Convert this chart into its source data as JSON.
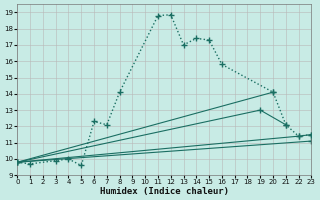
{
  "xlabel": "Humidex (Indice chaleur)",
  "bg_color": "#c8ebe5",
  "line_color": "#1a6e62",
  "xlim": [
    0,
    23
  ],
  "ylim": [
    9,
    19.5
  ],
  "yticks": [
    9,
    10,
    11,
    12,
    13,
    14,
    15,
    16,
    17,
    18,
    19
  ],
  "xticks": [
    0,
    1,
    2,
    3,
    4,
    5,
    6,
    7,
    8,
    9,
    10,
    11,
    12,
    13,
    14,
    15,
    16,
    17,
    18,
    19,
    20,
    21,
    22,
    23
  ],
  "zigzag_x": [
    0,
    1,
    3,
    4,
    5,
    6,
    7,
    8,
    11,
    12,
    13,
    14,
    15,
    16,
    20,
    21,
    22,
    23
  ],
  "zigzag_y": [
    9.8,
    9.7,
    9.9,
    10.0,
    9.6,
    12.3,
    12.1,
    14.1,
    18.8,
    18.85,
    17.0,
    17.4,
    17.3,
    15.8,
    14.1,
    12.1,
    11.4,
    11.5
  ],
  "straight_lines": [
    {
      "x": [
        0,
        20
      ],
      "y": [
        9.8,
        14.1
      ]
    },
    {
      "x": [
        0,
        19,
        21
      ],
      "y": [
        9.8,
        13.0,
        12.1
      ]
    },
    {
      "x": [
        0,
        22,
        23
      ],
      "y": [
        9.8,
        11.4,
        11.5
      ]
    },
    {
      "x": [
        0,
        23
      ],
      "y": [
        9.8,
        11.1
      ]
    }
  ],
  "marker": "+",
  "markersize": 4,
  "linewidth_zigzag": 1.0,
  "linewidth_straight": 0.8
}
